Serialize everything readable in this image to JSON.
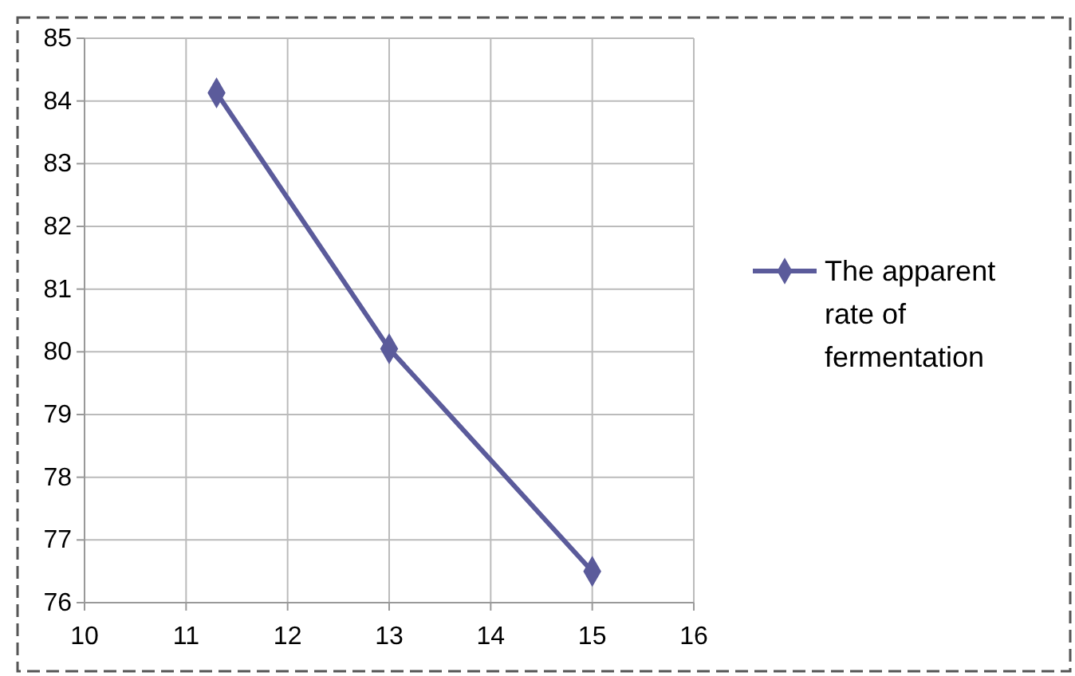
{
  "chart_data": {
    "type": "line",
    "x": [
      11.3,
      13,
      15
    ],
    "series": [
      {
        "name": "The apparent rate of fermentation",
        "color": "#5b5b9b",
        "values": [
          84.13,
          80.05,
          76.5
        ]
      }
    ],
    "xlim": [
      10,
      16
    ],
    "xticks": [
      10,
      11,
      12,
      13,
      14,
      15,
      16
    ],
    "ylim": [
      76,
      85
    ],
    "yticks": [
      76,
      77,
      78,
      79,
      80,
      81,
      82,
      83,
      84,
      85
    ],
    "grid": true,
    "legend": "right",
    "marker": "diamond",
    "line_style": "solid"
  }
}
